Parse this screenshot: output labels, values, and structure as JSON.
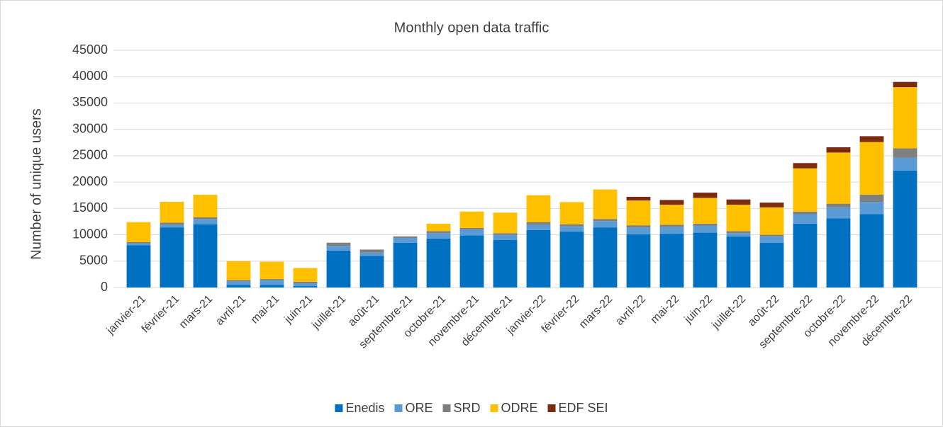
{
  "chart_data": {
    "type": "stacked_bar",
    "title": "Monthly open data traffic",
    "y_label": "Number of unique users",
    "categories": [
      "janvier-21",
      "février-21",
      "mars-21",
      "avril-21",
      "mai-21",
      "juin-21",
      "juillet-21",
      "août-21",
      "septembre-21",
      "octobre-21",
      "novembre-21",
      "décembre-21",
      "janvier-22",
      "février-22",
      "mars-22",
      "avril-22",
      "mai-22",
      "juin-22",
      "juillet-22",
      "août-22",
      "septembre-22",
      "octobre-22",
      "novembre-22",
      "décembre-22"
    ],
    "series": [
      {
        "name": "Enedis",
        "color": "#0070c0",
        "values": [
          8000,
          11400,
          12000,
          500,
          500,
          300,
          7000,
          6000,
          8500,
          9300,
          9900,
          9000,
          10900,
          10600,
          11400,
          10100,
          10200,
          10400,
          9700,
          8500,
          12100,
          13100,
          13900,
          22200
        ]
      },
      {
        "name": "ORE",
        "color": "#5b9bd5",
        "values": [
          400,
          500,
          1000,
          700,
          900,
          500,
          900,
          600,
          900,
          1000,
          1100,
          1000,
          1000,
          1000,
          1200,
          1300,
          1300,
          1300,
          600,
          1200,
          1800,
          2100,
          2300,
          2400
        ]
      },
      {
        "name": "SRD",
        "color": "#7f7f7f",
        "values": [
          200,
          400,
          300,
          200,
          200,
          300,
          600,
          600,
          300,
          400,
          300,
          300,
          500,
          400,
          400,
          400,
          400,
          400,
          400,
          300,
          500,
          700,
          1400,
          1800
        ]
      },
      {
        "name": "ODRE",
        "color": "#ffc000",
        "values": [
          3800,
          3950,
          4300,
          3600,
          3300,
          2600,
          0,
          0,
          0,
          1400,
          3100,
          3900,
          5100,
          4200,
          5600,
          4700,
          3800,
          4900,
          5000,
          5200,
          8200,
          9700,
          10000,
          11600
        ]
      },
      {
        "name": "EDF SEI",
        "color": "#7b2c10",
        "values": [
          0,
          0,
          0,
          0,
          0,
          0,
          0,
          0,
          0,
          0,
          0,
          0,
          0,
          0,
          0,
          700,
          900,
          1000,
          1000,
          900,
          1000,
          1000,
          1100,
          1000
        ]
      }
    ],
    "ylim": [
      0,
      45000
    ],
    "yticks": [
      0,
      5000,
      10000,
      15000,
      20000,
      25000,
      30000,
      35000,
      40000,
      45000
    ],
    "grid": true,
    "legend": "bottom"
  }
}
